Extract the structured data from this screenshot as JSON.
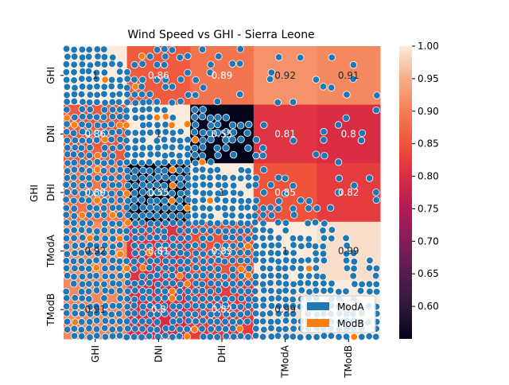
{
  "chart_data": {
    "type": "heatmap",
    "title": "Wind Speed vs GHI - Sierra Leone",
    "ylabel": "GHI",
    "xlabel": "",
    "row_labels": [
      "GHI",
      "DNI",
      "DHI",
      "TModA",
      "TModB"
    ],
    "col_labels": [
      "GHI",
      "DNI",
      "DHI",
      "TModA",
      "TModB"
    ],
    "matrix": [
      [
        1,
        0.86,
        0.89,
        0.92,
        0.91
      ],
      [
        0.86,
        1,
        0.55,
        0.81,
        0.8
      ],
      [
        0.89,
        0.55,
        1,
        0.85,
        0.82
      ],
      [
        0.92,
        0.81,
        0.85,
        1,
        0.99
      ],
      [
        0.91,
        0.8,
        0.82,
        0.99,
        1
      ]
    ],
    "cell_labels": [
      [
        "1",
        "0.86",
        "0.89",
        "0.92",
        "0.91"
      ],
      [
        "0.86",
        "1",
        "0.55",
        "0.81",
        "0.8"
      ],
      [
        "0.89",
        "0.55",
        "1",
        "0.85",
        "0.82"
      ],
      [
        "0.92",
        "0.81",
        "0.85",
        "1",
        "0.99"
      ],
      [
        "0.91",
        "0.8",
        "0.82",
        "0.99",
        "1"
      ]
    ],
    "colorbar": {
      "range": [
        0.55,
        1.0
      ],
      "ticks": [
        "0.60",
        "0.65",
        "0.70",
        "0.75",
        "0.80",
        "0.85",
        "0.90",
        "0.95",
        "1.00"
      ],
      "colormap": "rocket"
    },
    "legend": {
      "placement": "lower-right",
      "entries": [
        {
          "label": "ModA",
          "color": "#1f77b4"
        },
        {
          "label": "ModB",
          "color": "#ff7f0e"
        }
      ]
    },
    "scatter_overlay": {
      "series": [
        "ModA",
        "ModB"
      ],
      "colors": {
        "ModA": "#1f77b4",
        "ModB": "#ff7f0e"
      }
    }
  }
}
